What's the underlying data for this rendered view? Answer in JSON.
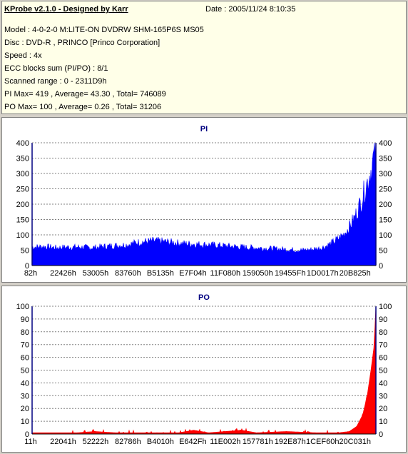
{
  "header": {
    "app_title": "KProbe v2.1.0 - Designed by Karr",
    "date": "Date : 2005/11/24 8:10:35",
    "lines": [
      "Model : 4-0-2-0 M:LITE-ON DVDRW SHM-165P6S MS05",
      "Disc : DVD-R , PRINCO [Princo Corporation]",
      "Speed : 4x",
      "ECC blocks sum (PI/PO) : 8/1",
      "Scanned range : 0 - 2311D9h",
      "PI Max= 419 , Average= 43.30 , Total= 746089",
      "PO Max= 100 , Average= 0.26 , Total= 31206"
    ]
  },
  "chart_data": [
    {
      "type": "area",
      "title": "PI",
      "ylim": [
        0,
        400
      ],
      "yticks": [
        0,
        50,
        100,
        150,
        200,
        250,
        300,
        350,
        400
      ],
      "xlim": [
        0,
        2298329
      ],
      "xtick_labels": [
        "82h",
        "22426h",
        "53005h",
        "83760h",
        "B5135h",
        "E7F04h",
        "11F080h",
        "159050h",
        "19455Fh",
        "1D0017h",
        "20B825h"
      ],
      "grid": true,
      "series": [
        {
          "color": "#0000ff",
          "points": [
            [
              0,
              60
            ],
            [
              80000,
              62
            ],
            [
              160000,
              58
            ],
            [
              240000,
              60
            ],
            [
              320000,
              60
            ],
            [
              400000,
              58
            ],
            [
              480000,
              62
            ],
            [
              560000,
              65
            ],
            [
              640000,
              68
            ],
            [
              700000,
              75
            ],
            [
              760000,
              78
            ],
            [
              820000,
              80
            ],
            [
              880000,
              78
            ],
            [
              940000,
              75
            ],
            [
              1000000,
              72
            ],
            [
              1080000,
              70
            ],
            [
              1160000,
              68
            ],
            [
              1240000,
              66
            ],
            [
              1320000,
              63
            ],
            [
              1400000,
              60
            ],
            [
              1480000,
              58
            ],
            [
              1560000,
              56
            ],
            [
              1640000,
              54
            ],
            [
              1720000,
              52
            ],
            [
              1800000,
              50
            ],
            [
              1860000,
              52
            ],
            [
              1920000,
              56
            ],
            [
              1960000,
              62
            ],
            [
              2000000,
              72
            ],
            [
              2040000,
              85
            ],
            [
              2080000,
              100
            ],
            [
              2120000,
              125
            ],
            [
              2160000,
              160
            ],
            [
              2200000,
              210
            ],
            [
              2240000,
              270
            ],
            [
              2270000,
              320
            ],
            [
              2290000,
              365
            ],
            [
              2298329,
              410
            ]
          ]
        }
      ]
    },
    {
      "type": "area",
      "title": "PO",
      "ylim": [
        0,
        100
      ],
      "yticks": [
        0,
        10,
        20,
        30,
        40,
        50,
        60,
        70,
        80,
        90,
        100
      ],
      "xlim": [
        0,
        2298329
      ],
      "xtick_labels": [
        "11h",
        "22041h",
        "52222h",
        "82786h",
        "B4010h",
        "E642Fh",
        "11E002h",
        "157781h",
        "192E87h",
        "1CEF60h",
        "20C031h"
      ],
      "grid": true,
      "series": [
        {
          "color": "#ff0000",
          "points": [
            [
              0,
              1
            ],
            [
              300000,
              1
            ],
            [
              420000,
              2
            ],
            [
              560000,
              1
            ],
            [
              700000,
              1
            ],
            [
              980000,
              1
            ],
            [
              1080000,
              3
            ],
            [
              1180000,
              1
            ],
            [
              1400000,
              3
            ],
            [
              1500000,
              1
            ],
            [
              1700000,
              2
            ],
            [
              1900000,
              1
            ],
            [
              2050000,
              1
            ],
            [
              2120000,
              2
            ],
            [
              2170000,
              6
            ],
            [
              2210000,
              15
            ],
            [
              2240000,
              30
            ],
            [
              2265000,
              50
            ],
            [
              2285000,
              68
            ],
            [
              2298329,
              100
            ]
          ]
        }
      ]
    }
  ]
}
